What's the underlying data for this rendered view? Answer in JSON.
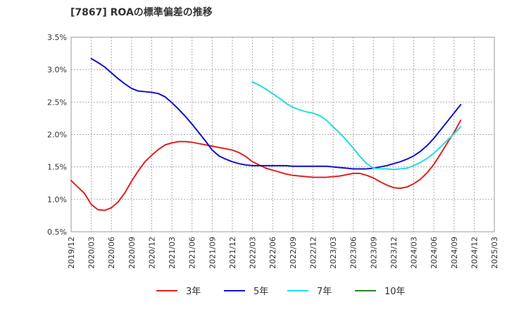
{
  "chart_data": {
    "type": "line",
    "title": "[7867]  ROAの標準偏差の推移",
    "xlabel": "",
    "ylabel": "",
    "ylim": [
      0.005,
      0.035
    ],
    "yticks": [
      0.005,
      0.01,
      0.015,
      0.02,
      0.025,
      0.03,
      0.035
    ],
    "ytick_labels": [
      "0.5%",
      "1.0%",
      "1.5%",
      "2.0%",
      "2.5%",
      "3.0%",
      "3.5%"
    ],
    "xticks": [
      "2019/12",
      "2020/03",
      "2020/06",
      "2020/09",
      "2020/12",
      "2021/03",
      "2021/06",
      "2021/09",
      "2021/12",
      "2022/03",
      "2022/06",
      "2022/09",
      "2022/12",
      "2023/03",
      "2023/06",
      "2023/09",
      "2023/12",
      "2024/03",
      "2024/06",
      "2024/09",
      "2024/12",
      "2025/03"
    ],
    "grid": true,
    "legend_position": "bottom",
    "series": [
      {
        "name": "3年",
        "color": "#dd2222",
        "points": [
          [
            "2019/12",
            0.0129
          ],
          [
            "2020/01",
            0.0119
          ],
          [
            "2020/02",
            0.0109
          ],
          [
            "2020/03",
            0.0092
          ],
          [
            "2020/04",
            0.0084
          ],
          [
            "2020/05",
            0.0083
          ],
          [
            "2020/06",
            0.0087
          ],
          [
            "2020/07",
            0.0096
          ],
          [
            "2020/08",
            0.011
          ],
          [
            "2020/09",
            0.0128
          ],
          [
            "2020/10",
            0.0144
          ],
          [
            "2020/11",
            0.0158
          ],
          [
            "2020/12",
            0.0168
          ],
          [
            "2021/01",
            0.0177
          ],
          [
            "2021/02",
            0.0184
          ],
          [
            "2021/03",
            0.0187
          ],
          [
            "2021/04",
            0.0189
          ],
          [
            "2021/05",
            0.0189
          ],
          [
            "2021/06",
            0.0188
          ],
          [
            "2021/07",
            0.0186
          ],
          [
            "2021/08",
            0.0184
          ],
          [
            "2021/09",
            0.0182
          ],
          [
            "2021/10",
            0.018
          ],
          [
            "2021/11",
            0.0178
          ],
          [
            "2021/12",
            0.0176
          ],
          [
            "2022/01",
            0.0172
          ],
          [
            "2022/02",
            0.0166
          ],
          [
            "2022/03",
            0.0158
          ],
          [
            "2022/04",
            0.0153
          ],
          [
            "2022/05",
            0.0148
          ],
          [
            "2022/06",
            0.0145
          ],
          [
            "2022/07",
            0.0142
          ],
          [
            "2022/08",
            0.0139
          ],
          [
            "2022/09",
            0.0137
          ],
          [
            "2022/10",
            0.0136
          ],
          [
            "2022/11",
            0.0135
          ],
          [
            "2022/12",
            0.0134
          ],
          [
            "2023/01",
            0.0134
          ],
          [
            "2023/02",
            0.0134
          ],
          [
            "2023/03",
            0.0135
          ],
          [
            "2023/04",
            0.0136
          ],
          [
            "2023/05",
            0.0138
          ],
          [
            "2023/06",
            0.014
          ],
          [
            "2023/07",
            0.014
          ],
          [
            "2023/08",
            0.0137
          ],
          [
            "2023/09",
            0.0133
          ],
          [
            "2023/10",
            0.0127
          ],
          [
            "2023/11",
            0.0122
          ],
          [
            "2023/12",
            0.0118
          ],
          [
            "2024/01",
            0.0117
          ],
          [
            "2024/02",
            0.0119
          ],
          [
            "2024/03",
            0.0124
          ],
          [
            "2024/04",
            0.0131
          ],
          [
            "2024/05",
            0.0141
          ],
          [
            "2024/06",
            0.0154
          ],
          [
            "2024/07",
            0.017
          ],
          [
            "2024/08",
            0.0187
          ],
          [
            "2024/09",
            0.0203
          ],
          [
            "2024/10",
            0.0222
          ]
        ]
      },
      {
        "name": "5年",
        "color": "#1111cc",
        "points": [
          [
            "2020/03",
            0.0317
          ],
          [
            "2020/04",
            0.0311
          ],
          [
            "2020/05",
            0.0304
          ],
          [
            "2020/06",
            0.0295
          ],
          [
            "2020/07",
            0.0286
          ],
          [
            "2020/08",
            0.0278
          ],
          [
            "2020/09",
            0.0271
          ],
          [
            "2020/10",
            0.0267
          ],
          [
            "2020/11",
            0.0266
          ],
          [
            "2020/12",
            0.0265
          ],
          [
            "2021/01",
            0.0263
          ],
          [
            "2021/02",
            0.0258
          ],
          [
            "2021/03",
            0.0249
          ],
          [
            "2021/04",
            0.0239
          ],
          [
            "2021/05",
            0.0228
          ],
          [
            "2021/06",
            0.0216
          ],
          [
            "2021/07",
            0.0203
          ],
          [
            "2021/08",
            0.019
          ],
          [
            "2021/09",
            0.0176
          ],
          [
            "2021/10",
            0.0167
          ],
          [
            "2021/11",
            0.0162
          ],
          [
            "2021/12",
            0.0158
          ],
          [
            "2022/01",
            0.0155
          ],
          [
            "2022/02",
            0.0153
          ],
          [
            "2022/03",
            0.0152
          ],
          [
            "2022/04",
            0.0152
          ],
          [
            "2022/05",
            0.0152
          ],
          [
            "2022/06",
            0.0152
          ],
          [
            "2022/07",
            0.0152
          ],
          [
            "2022/08",
            0.0152
          ],
          [
            "2022/09",
            0.0151
          ],
          [
            "2022/10",
            0.0151
          ],
          [
            "2022/11",
            0.0151
          ],
          [
            "2022/12",
            0.0151
          ],
          [
            "2023/01",
            0.0151
          ],
          [
            "2023/02",
            0.0151
          ],
          [
            "2023/03",
            0.015
          ],
          [
            "2023/04",
            0.0149
          ],
          [
            "2023/05",
            0.0148
          ],
          [
            "2023/06",
            0.0147
          ],
          [
            "2023/07",
            0.0147
          ],
          [
            "2023/08",
            0.0147
          ],
          [
            "2023/09",
            0.0148
          ],
          [
            "2023/10",
            0.015
          ],
          [
            "2023/11",
            0.0152
          ],
          [
            "2023/12",
            0.0155
          ],
          [
            "2024/01",
            0.0158
          ],
          [
            "2024/02",
            0.0162
          ],
          [
            "2024/03",
            0.0167
          ],
          [
            "2024/04",
            0.0174
          ],
          [
            "2024/05",
            0.0183
          ],
          [
            "2024/06",
            0.0194
          ],
          [
            "2024/07",
            0.0207
          ],
          [
            "2024/08",
            0.022
          ],
          [
            "2024/09",
            0.0233
          ],
          [
            "2024/10",
            0.0246
          ]
        ]
      },
      {
        "name": "7年",
        "color": "#22dddd",
        "points": [
          [
            "2022/03",
            0.0281
          ],
          [
            "2022/04",
            0.0276
          ],
          [
            "2022/05",
            0.027
          ],
          [
            "2022/06",
            0.0263
          ],
          [
            "2022/07",
            0.0256
          ],
          [
            "2022/08",
            0.0248
          ],
          [
            "2022/09",
            0.0242
          ],
          [
            "2022/10",
            0.0238
          ],
          [
            "2022/11",
            0.0235
          ],
          [
            "2022/12",
            0.0233
          ],
          [
            "2023/01",
            0.0229
          ],
          [
            "2023/02",
            0.0222
          ],
          [
            "2023/03",
            0.0212
          ],
          [
            "2023/04",
            0.0202
          ],
          [
            "2023/05",
            0.0191
          ],
          [
            "2023/06",
            0.0179
          ],
          [
            "2023/07",
            0.0166
          ],
          [
            "2023/08",
            0.0155
          ],
          [
            "2023/09",
            0.0148
          ],
          [
            "2023/10",
            0.0147
          ],
          [
            "2023/11",
            0.0147
          ],
          [
            "2023/12",
            0.0146
          ],
          [
            "2024/01",
            0.0147
          ],
          [
            "2024/02",
            0.0148
          ],
          [
            "2024/03",
            0.0152
          ],
          [
            "2024/04",
            0.0157
          ],
          [
            "2024/05",
            0.0163
          ],
          [
            "2024/06",
            0.0171
          ],
          [
            "2024/07",
            0.0181
          ],
          [
            "2024/08",
            0.0191
          ],
          [
            "2024/09",
            0.0201
          ],
          [
            "2024/10",
            0.0212
          ]
        ]
      },
      {
        "name": "10年",
        "color": "#228822",
        "points": []
      }
    ]
  }
}
